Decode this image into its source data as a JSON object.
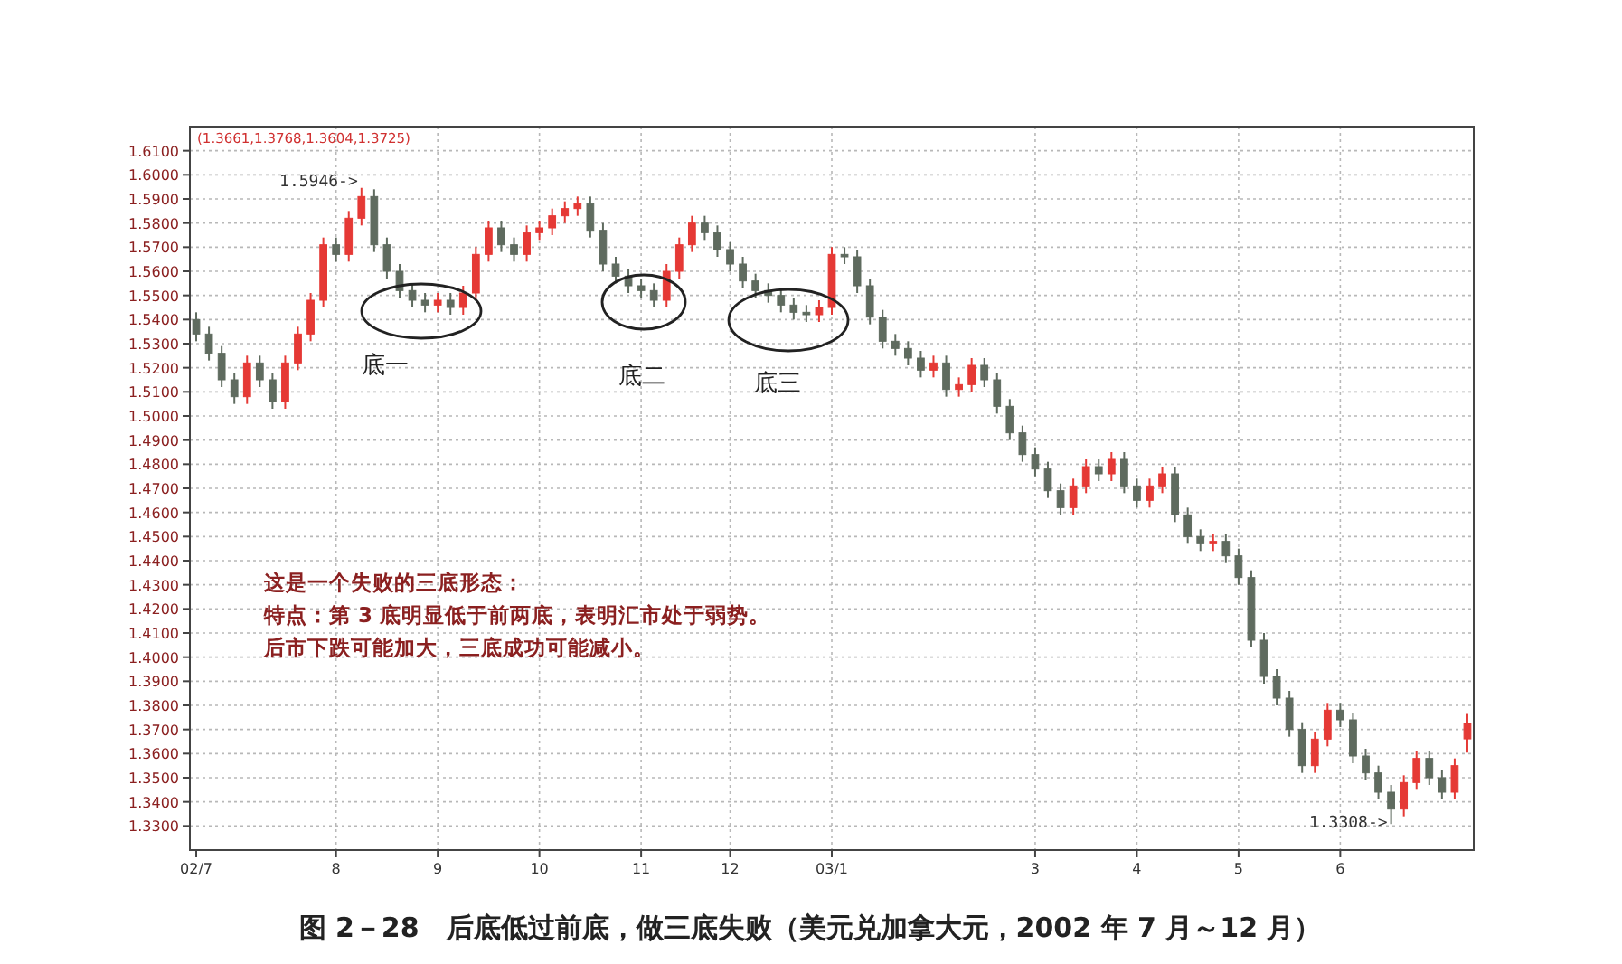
{
  "chart_data": {
    "type": "candlestick",
    "title": "图 2－28　后底低过前底，做三底失败（美元兑加拿大元，2002 年 7 月～12 月）",
    "categories": [
      "02/7",
      null,
      null,
      null,
      null,
      null,
      null,
      null,
      null,
      null,
      null,
      "8",
      null,
      null,
      null,
      null,
      null,
      null,
      null,
      "9",
      null,
      null,
      null,
      null,
      null,
      null,
      null,
      "10",
      null,
      null,
      null,
      null,
      null,
      null,
      null,
      "11",
      null,
      null,
      null,
      null,
      null,
      null,
      "12",
      null,
      null,
      null,
      null,
      null,
      null,
      null,
      "03/1",
      null,
      null,
      null,
      null,
      null,
      null,
      null,
      null,
      null,
      null,
      null,
      null,
      null,
      null,
      null,
      "3",
      null,
      null,
      null,
      null,
      null,
      null,
      null,
      "4",
      null,
      null,
      null,
      null,
      null,
      null,
      null,
      "5",
      null,
      null,
      null,
      null,
      null,
      null,
      null,
      "6",
      null,
      null,
      null,
      null,
      null,
      null,
      null,
      null,
      null,
      null
    ],
    "ohlc": [
      [
        1.54,
        1.543,
        1.531,
        1.534
      ],
      [
        1.534,
        1.537,
        1.523,
        1.526
      ],
      [
        1.526,
        1.529,
        1.512,
        1.515
      ],
      [
        1.515,
        1.518,
        1.505,
        1.508
      ],
      [
        1.508,
        1.525,
        1.505,
        1.522
      ],
      [
        1.522,
        1.525,
        1.512,
        1.515
      ],
      [
        1.515,
        1.518,
        1.503,
        1.506
      ],
      [
        1.506,
        1.525,
        1.503,
        1.522
      ],
      [
        1.522,
        1.537,
        1.519,
        1.534
      ],
      [
        1.534,
        1.551,
        1.531,
        1.548
      ],
      [
        1.548,
        1.574,
        1.545,
        1.571
      ],
      [
        1.571,
        1.574,
        1.564,
        1.567
      ],
      [
        1.567,
        1.585,
        1.564,
        1.582
      ],
      [
        1.582,
        1.5946,
        1.579,
        1.591
      ],
      [
        1.591,
        1.594,
        1.568,
        1.571
      ],
      [
        1.571,
        1.574,
        1.557,
        1.56
      ],
      [
        1.56,
        1.563,
        1.549,
        1.552
      ],
      [
        1.552,
        1.555,
        1.545,
        1.548
      ],
      [
        1.548,
        1.551,
        1.543,
        1.546
      ],
      [
        1.546,
        1.551,
        1.543,
        1.548
      ],
      [
        1.548,
        1.551,
        1.542,
        1.545
      ],
      [
        1.545,
        1.554,
        1.542,
        1.551
      ],
      [
        1.551,
        1.57,
        1.548,
        1.567
      ],
      [
        1.567,
        1.581,
        1.564,
        1.578
      ],
      [
        1.578,
        1.581,
        1.568,
        1.571
      ],
      [
        1.571,
        1.574,
        1.564,
        1.567
      ],
      [
        1.567,
        1.579,
        1.564,
        1.576
      ],
      [
        1.576,
        1.581,
        1.573,
        1.578
      ],
      [
        1.578,
        1.586,
        1.575,
        1.583
      ],
      [
        1.583,
        1.589,
        1.58,
        1.586
      ],
      [
        1.586,
        1.591,
        1.583,
        1.588
      ],
      [
        1.588,
        1.591,
        1.574,
        1.577
      ],
      [
        1.577,
        1.58,
        1.56,
        1.563
      ],
      [
        1.563,
        1.566,
        1.555,
        1.558
      ],
      [
        1.558,
        1.561,
        1.551,
        1.554
      ],
      [
        1.554,
        1.557,
        1.549,
        1.552
      ],
      [
        1.552,
        1.555,
        1.545,
        1.548
      ],
      [
        1.548,
        1.563,
        1.545,
        1.56
      ],
      [
        1.56,
        1.574,
        1.557,
        1.571
      ],
      [
        1.571,
        1.583,
        1.568,
        1.58
      ],
      [
        1.58,
        1.583,
        1.573,
        1.576
      ],
      [
        1.576,
        1.579,
        1.566,
        1.569
      ],
      [
        1.569,
        1.572,
        1.56,
        1.563
      ],
      [
        1.563,
        1.566,
        1.553,
        1.556
      ],
      [
        1.556,
        1.559,
        1.549,
        1.552
      ],
      [
        1.552,
        1.555,
        1.547,
        1.55
      ],
      [
        1.55,
        1.553,
        1.543,
        1.546
      ],
      [
        1.546,
        1.549,
        1.54,
        1.543
      ],
      [
        1.543,
        1.546,
        1.539,
        1.542
      ],
      [
        1.542,
        1.548,
        1.539,
        1.545
      ],
      [
        1.545,
        1.57,
        1.542,
        1.567
      ],
      [
        1.567,
        1.57,
        1.563,
        1.566
      ],
      [
        1.566,
        1.569,
        1.551,
        1.554
      ],
      [
        1.554,
        1.557,
        1.538,
        1.541
      ],
      [
        1.541,
        1.544,
        1.528,
        1.531
      ],
      [
        1.531,
        1.534,
        1.525,
        1.528
      ],
      [
        1.528,
        1.531,
        1.521,
        1.524
      ],
      [
        1.524,
        1.527,
        1.516,
        1.519
      ],
      [
        1.519,
        1.525,
        1.516,
        1.522
      ],
      [
        1.522,
        1.525,
        1.508,
        1.511
      ],
      [
        1.511,
        1.516,
        1.508,
        1.513
      ],
      [
        1.513,
        1.524,
        1.51,
        1.521
      ],
      [
        1.521,
        1.524,
        1.512,
        1.515
      ],
      [
        1.515,
        1.518,
        1.501,
        1.504
      ],
      [
        1.504,
        1.507,
        1.49,
        1.493
      ],
      [
        1.493,
        1.496,
        1.481,
        1.484
      ],
      [
        1.484,
        1.487,
        1.475,
        1.478
      ],
      [
        1.478,
        1.481,
        1.466,
        1.469
      ],
      [
        1.469,
        1.472,
        1.459,
        1.462
      ],
      [
        1.462,
        1.474,
        1.459,
        1.471
      ],
      [
        1.471,
        1.482,
        1.468,
        1.479
      ],
      [
        1.479,
        1.482,
        1.473,
        1.476
      ],
      [
        1.476,
        1.485,
        1.473,
        1.482
      ],
      [
        1.482,
        1.485,
        1.468,
        1.471
      ],
      [
        1.471,
        1.474,
        1.462,
        1.465
      ],
      [
        1.465,
        1.474,
        1.462,
        1.471
      ],
      [
        1.471,
        1.479,
        1.468,
        1.476
      ],
      [
        1.476,
        1.479,
        1.456,
        1.459
      ],
      [
        1.459,
        1.462,
        1.447,
        1.45
      ],
      [
        1.45,
        1.453,
        1.444,
        1.447
      ],
      [
        1.447,
        1.451,
        1.444,
        1.448
      ],
      [
        1.448,
        1.451,
        1.439,
        1.442
      ],
      [
        1.442,
        1.445,
        1.43,
        1.433
      ],
      [
        1.433,
        1.436,
        1.404,
        1.407
      ],
      [
        1.407,
        1.41,
        1.389,
        1.392
      ],
      [
        1.392,
        1.395,
        1.38,
        1.383
      ],
      [
        1.383,
        1.386,
        1.367,
        1.37
      ],
      [
        1.37,
        1.373,
        1.352,
        1.355
      ],
      [
        1.355,
        1.369,
        1.352,
        1.366
      ],
      [
        1.366,
        1.381,
        1.363,
        1.378
      ],
      [
        1.378,
        1.381,
        1.371,
        1.374
      ],
      [
        1.374,
        1.377,
        1.356,
        1.359
      ],
      [
        1.359,
        1.362,
        1.349,
        1.352
      ],
      [
        1.352,
        1.355,
        1.341,
        1.344
      ],
      [
        1.344,
        1.347,
        1.3308,
        1.337
      ],
      [
        1.337,
        1.351,
        1.334,
        1.348
      ],
      [
        1.348,
        1.361,
        1.345,
        1.358
      ],
      [
        1.358,
        1.361,
        1.347,
        1.35
      ],
      [
        1.35,
        1.353,
        1.341,
        1.344
      ],
      [
        1.344,
        1.358,
        1.341,
        1.355
      ],
      [
        1.3661,
        1.3768,
        1.3604,
        1.3725
      ]
    ],
    "colors": [
      "#5f6b5f",
      "#5f6b5f",
      "#5f6b5f",
      "#5f6b5f",
      "#e53935",
      "#5f6b5f",
      "#5f6b5f",
      "#e53935",
      "#e53935",
      "#e53935",
      "#e53935",
      "#5f6b5f",
      "#e53935",
      "#e53935",
      "#5f6b5f",
      "#5f6b5f",
      "#5f6b5f",
      "#5f6b5f",
      "#5f6b5f",
      "#e53935",
      "#5f6b5f",
      "#e53935",
      "#e53935",
      "#e53935",
      "#5f6b5f",
      "#5f6b5f",
      "#e53935",
      "#e53935",
      "#e53935",
      "#e53935",
      "#e53935",
      "#5f6b5f",
      "#5f6b5f",
      "#5f6b5f",
      "#5f6b5f",
      "#5f6b5f",
      "#5f6b5f",
      "#e53935",
      "#e53935",
      "#e53935",
      "#5f6b5f",
      "#5f6b5f",
      "#5f6b5f",
      "#5f6b5f",
      "#5f6b5f",
      "#5f6b5f",
      "#5f6b5f",
      "#5f6b5f",
      "#5f6b5f",
      "#e53935",
      "#e53935",
      "#5f6b5f",
      "#5f6b5f",
      "#5f6b5f",
      "#5f6b5f",
      "#5f6b5f",
      "#5f6b5f",
      "#5f6b5f",
      "#e53935",
      "#5f6b5f",
      "#e53935",
      "#e53935",
      "#5f6b5f",
      "#5f6b5f",
      "#5f6b5f",
      "#5f6b5f",
      "#5f6b5f",
      "#5f6b5f",
      "#5f6b5f",
      "#e53935",
      "#e53935",
      "#5f6b5f",
      "#e53935",
      "#5f6b5f",
      "#5f6b5f",
      "#e53935",
      "#e53935",
      "#5f6b5f",
      "#5f6b5f",
      "#5f6b5f",
      "#e53935",
      "#5f6b5f",
      "#5f6b5f",
      "#5f6b5f",
      "#5f6b5f",
      "#5f6b5f",
      "#5f6b5f",
      "#5f6b5f",
      "#e53935",
      "#e53935",
      "#5f6b5f",
      "#5f6b5f",
      "#5f6b5f",
      "#5f6b5f",
      "#5f6b5f",
      "#e53935",
      "#e53935",
      "#5f6b5f",
      "#5f6b5f",
      "#e53935",
      "#e53935"
    ],
    "ylim": [
      1.32,
      1.62
    ],
    "yticks": [
      {
        "value": 1.33,
        "label": "1.3300"
      },
      {
        "value": 1.34,
        "label": "1.3400"
      },
      {
        "value": 1.35,
        "label": "1.3500"
      },
      {
        "value": 1.36,
        "label": "1.3600"
      },
      {
        "value": 1.37,
        "label": "1.3700"
      },
      {
        "value": 1.38,
        "label": "1.3800"
      },
      {
        "value": 1.39,
        "label": "1.3900"
      },
      {
        "value": 1.4,
        "label": "1.4000"
      },
      {
        "value": 1.41,
        "label": "1.4100"
      },
      {
        "value": 1.42,
        "label": "1.4200"
      },
      {
        "value": 1.43,
        "label": "1.4300"
      },
      {
        "value": 1.44,
        "label": "1.4400"
      },
      {
        "value": 1.45,
        "label": "1.4500"
      },
      {
        "value": 1.46,
        "label": "1.4600"
      },
      {
        "value": 1.47,
        "label": "1.4700"
      },
      {
        "value": 1.48,
        "label": "1.4800"
      },
      {
        "value": 1.49,
        "label": "1.4900"
      },
      {
        "value": 1.5,
        "label": "1.5000"
      },
      {
        "value": 1.51,
        "label": "1.5100"
      },
      {
        "value": 1.52,
        "label": "1.5200"
      },
      {
        "value": 1.53,
        "label": "1.5300"
      },
      {
        "value": 1.54,
        "label": "1.5400"
      },
      {
        "value": 1.55,
        "label": "1.5500"
      },
      {
        "value": 1.56,
        "label": "1.5600"
      },
      {
        "value": 1.57,
        "label": "1.5700"
      },
      {
        "value": 1.58,
        "label": "1.5800"
      },
      {
        "value": 1.59,
        "label": "1.5900"
      },
      {
        "value": 1.6,
        "label": "1.6000"
      },
      {
        "value": 1.61,
        "label": "1.6100"
      }
    ],
    "grid": true,
    "annotations": [
      "1.5946->",
      "1.3308->",
      "底一",
      "底二",
      "底三",
      "这是一个失败的三底形态：",
      "特点：第 3 底明显低于前两底，表明汇市处于弱势。",
      "后市下跌可能加大，三底成功可能减小。",
      "(1.3661,1.3768,1.3604,1.3725)"
    ]
  }
}
